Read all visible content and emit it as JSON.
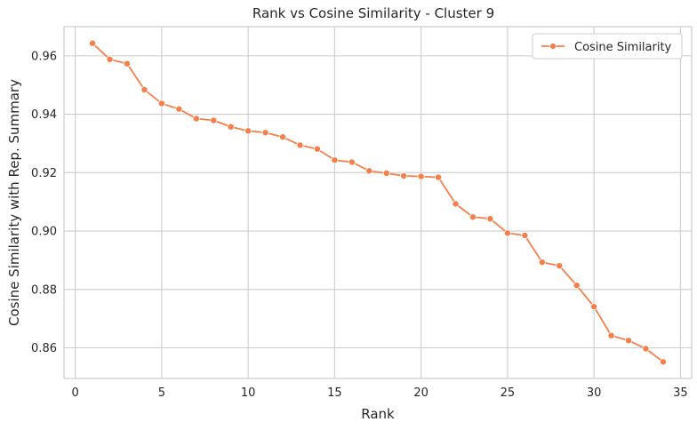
{
  "chart_data": {
    "type": "line",
    "title": "Rank vs Cosine Similarity - Cluster 9",
    "xlabel": "Rank",
    "ylabel": "Cosine Similarity with Rep. Summary",
    "xlim": [
      -0.65,
      35.65
    ],
    "ylim": [
      0.8495,
      0.97
    ],
    "xticks": [
      0,
      5,
      10,
      15,
      20,
      25,
      30,
      35
    ],
    "yticks": [
      0.86,
      0.88,
      0.9,
      0.92,
      0.94,
      0.96
    ],
    "ytick_labels": [
      "0.86",
      "0.88",
      "0.90",
      "0.92",
      "0.94",
      "0.96"
    ],
    "grid": true,
    "legend_position": "top-right",
    "series": [
      {
        "name": "Cosine Similarity",
        "color": "#f47f4b",
        "x": [
          1,
          2,
          3,
          4,
          5,
          6,
          7,
          8,
          9,
          10,
          11,
          12,
          13,
          14,
          15,
          16,
          17,
          18,
          19,
          20,
          21,
          22,
          23,
          24,
          25,
          26,
          27,
          28,
          29,
          30,
          31,
          32,
          33,
          34
        ],
        "y": [
          0.9643,
          0.9588,
          0.9573,
          0.9484,
          0.9437,
          0.9418,
          0.9385,
          0.9379,
          0.9357,
          0.9343,
          0.9337,
          0.9322,
          0.9294,
          0.9281,
          0.9243,
          0.9236,
          0.9206,
          0.9198,
          0.9189,
          0.9187,
          0.9184,
          0.9093,
          0.9048,
          0.9042,
          0.8993,
          0.8985,
          0.8893,
          0.8881,
          0.8814,
          0.8741,
          0.8642,
          0.8625,
          0.8597,
          0.8552
        ]
      }
    ]
  }
}
